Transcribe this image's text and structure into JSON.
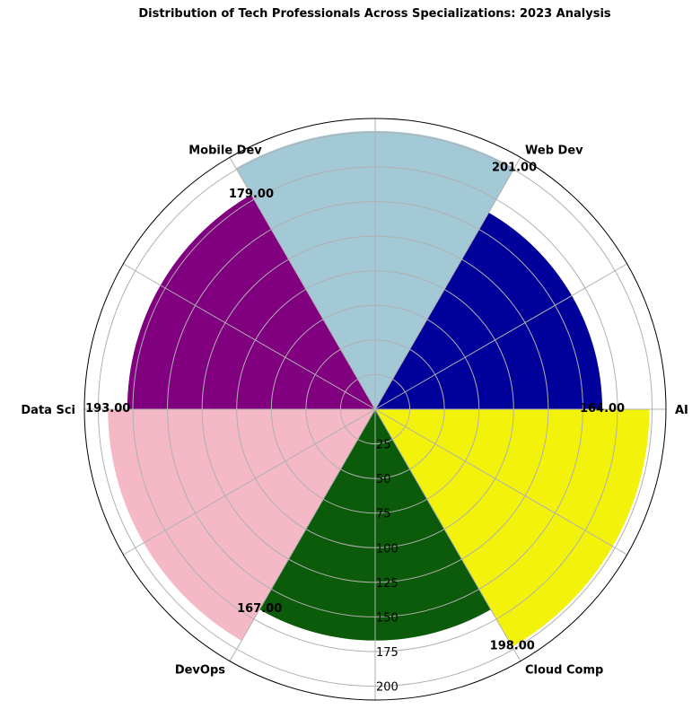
{
  "chart_data": {
    "type": "polar-bar",
    "title": "Distribution of Tech Professionals Across Specializations: 2023 Analysis",
    "categories": [
      "AI",
      "Web Dev",
      "Mobile Dev",
      "Data Sci",
      "DevOps",
      "Cloud Comp"
    ],
    "values": [
      164,
      201,
      179,
      193,
      167,
      198
    ],
    "value_labels": [
      "164.00",
      "201.00",
      "179.00",
      "193.00",
      "167.00",
      "198.00"
    ],
    "colors": [
      "#00009b",
      "#a3c8d6",
      "#800080",
      "#f5b8c6",
      "#0b5b0b",
      "#f2f20a"
    ],
    "r_ticks": [
      25,
      50,
      75,
      100,
      125,
      150,
      175,
      200
    ],
    "r_max": 210,
    "grid": true
  }
}
